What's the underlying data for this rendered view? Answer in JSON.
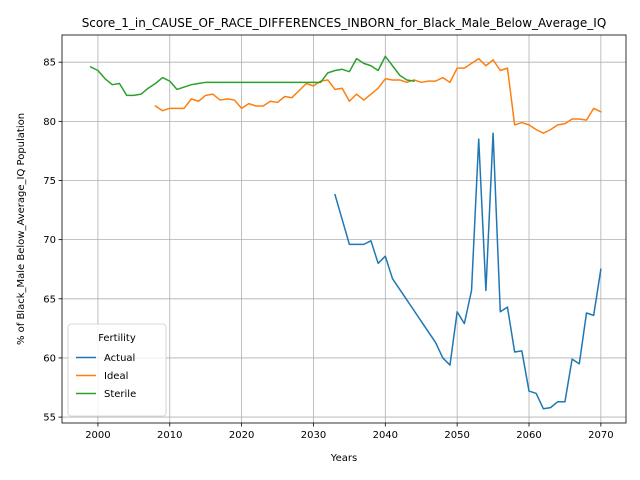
{
  "chart_data": {
    "type": "line",
    "title": "Score_1_in_CAUSE_OF_RACE_DIFFERENCES_INBORN_for_Black_Male_Below_Average_IQ",
    "xlabel": "Years",
    "ylabel": "% of Black_Male Below_Average_IQ Population",
    "xlim": [
      1995,
      2073.5
    ],
    "ylim": [
      54.5,
      87.3
    ],
    "x_ticks": [
      2000,
      2010,
      2020,
      2030,
      2040,
      2050,
      2060,
      2070
    ],
    "y_ticks": [
      55,
      60,
      65,
      70,
      75,
      80,
      85
    ],
    "grid": true,
    "legend": {
      "title": "Fertility",
      "placement": "lower-left"
    },
    "series": [
      {
        "name": "Actual",
        "color": "#1f77b4",
        "points": [
          [
            2033,
            73.8
          ],
          [
            2034,
            71.7
          ],
          [
            2035,
            69.6
          ],
          [
            2036,
            69.6
          ],
          [
            2037,
            69.6
          ],
          [
            2038,
            69.9
          ],
          [
            2039,
            68.0
          ],
          [
            2040,
            68.6
          ],
          [
            2041,
            66.7
          ],
          [
            2042,
            65.8
          ],
          [
            2043,
            64.9
          ],
          [
            2044,
            64.0
          ],
          [
            2045,
            63.1
          ],
          [
            2046,
            62.2
          ],
          [
            2047,
            61.3
          ],
          [
            2048,
            60.0
          ],
          [
            2049,
            59.4
          ],
          [
            2050,
            63.9
          ],
          [
            2051,
            62.9
          ],
          [
            2052,
            65.7
          ],
          [
            2053,
            78.5
          ],
          [
            2054,
            65.7
          ],
          [
            2055,
            79.0
          ],
          [
            2056,
            63.9
          ],
          [
            2057,
            64.3
          ],
          [
            2058,
            60.5
          ],
          [
            2059,
            60.6
          ],
          [
            2060,
            57.2
          ],
          [
            2061,
            57.0
          ],
          [
            2062,
            55.7
          ],
          [
            2063,
            55.8
          ],
          [
            2064,
            56.3
          ],
          [
            2065,
            56.3
          ],
          [
            2066,
            59.9
          ],
          [
            2067,
            59.5
          ],
          [
            2068,
            63.8
          ],
          [
            2069,
            63.6
          ],
          [
            2070,
            67.5
          ]
        ]
      },
      {
        "name": "Ideal",
        "color": "#ff7f0e",
        "points": [
          [
            2008,
            81.3
          ],
          [
            2009,
            80.9
          ],
          [
            2010,
            81.1
          ],
          [
            2011,
            81.1
          ],
          [
            2012,
            81.1
          ],
          [
            2013,
            81.9
          ],
          [
            2014,
            81.7
          ],
          [
            2015,
            82.2
          ],
          [
            2016,
            82.3
          ],
          [
            2017,
            81.8
          ],
          [
            2018,
            81.9
          ],
          [
            2019,
            81.8
          ],
          [
            2020,
            81.1
          ],
          [
            2021,
            81.5
          ],
          [
            2022,
            81.3
          ],
          [
            2023,
            81.3
          ],
          [
            2024,
            81.7
          ],
          [
            2025,
            81.6
          ],
          [
            2026,
            82.1
          ],
          [
            2027,
            82.0
          ],
          [
            2028,
            82.6
          ],
          [
            2029,
            83.2
          ],
          [
            2030,
            83.0
          ],
          [
            2031,
            83.4
          ],
          [
            2032,
            83.5
          ],
          [
            2033,
            82.7
          ],
          [
            2034,
            82.8
          ],
          [
            2035,
            81.7
          ],
          [
            2036,
            82.3
          ],
          [
            2037,
            81.8
          ],
          [
            2038,
            82.3
          ],
          [
            2039,
            82.8
          ],
          [
            2040,
            83.6
          ],
          [
            2041,
            83.5
          ],
          [
            2042,
            83.5
          ],
          [
            2043,
            83.3
          ],
          [
            2044,
            83.5
          ],
          [
            2045,
            83.3
          ],
          [
            2046,
            83.4
          ],
          [
            2047,
            83.4
          ],
          [
            2048,
            83.7
          ],
          [
            2049,
            83.3
          ],
          [
            2050,
            84.5
          ],
          [
            2051,
            84.5
          ],
          [
            2052,
            84.9
          ],
          [
            2053,
            85.3
          ],
          [
            2054,
            84.7
          ],
          [
            2055,
            85.2
          ],
          [
            2056,
            84.3
          ],
          [
            2057,
            84.5
          ],
          [
            2058,
            79.7
          ],
          [
            2059,
            79.9
          ],
          [
            2060,
            79.7
          ],
          [
            2061,
            79.3
          ],
          [
            2062,
            79.0
          ],
          [
            2063,
            79.3
          ],
          [
            2064,
            79.7
          ],
          [
            2065,
            79.8
          ],
          [
            2066,
            80.2
          ],
          [
            2067,
            80.2
          ],
          [
            2068,
            80.1
          ],
          [
            2069,
            81.1
          ],
          [
            2070,
            80.8
          ]
        ]
      },
      {
        "name": "Sterile",
        "color": "#2ca02c",
        "points": [
          [
            1999,
            84.6
          ],
          [
            2000,
            84.3
          ],
          [
            2001,
            83.6
          ],
          [
            2002,
            83.1
          ],
          [
            2003,
            83.2
          ],
          [
            2004,
            82.2
          ],
          [
            2005,
            82.2
          ],
          [
            2006,
            82.3
          ],
          [
            2007,
            82.8
          ],
          [
            2008,
            83.2
          ],
          [
            2009,
            83.7
          ],
          [
            2010,
            83.4
          ],
          [
            2011,
            82.7
          ],
          [
            2012,
            82.9
          ],
          [
            2013,
            83.1
          ],
          [
            2014,
            83.2
          ],
          [
            2015,
            83.3
          ],
          [
            2016,
            83.3
          ],
          [
            2017,
            83.3
          ],
          [
            2018,
            83.3
          ],
          [
            2019,
            83.3
          ],
          [
            2020,
            83.3
          ],
          [
            2021,
            83.3
          ],
          [
            2022,
            83.3
          ],
          [
            2023,
            83.3
          ],
          [
            2024,
            83.3
          ],
          [
            2025,
            83.3
          ],
          [
            2026,
            83.3
          ],
          [
            2027,
            83.3
          ],
          [
            2028,
            83.3
          ],
          [
            2029,
            83.3
          ],
          [
            2030,
            83.3
          ],
          [
            2031,
            83.3
          ],
          [
            2032,
            84.1
          ],
          [
            2033,
            84.3
          ],
          [
            2034,
            84.4
          ],
          [
            2035,
            84.2
          ],
          [
            2036,
            85.3
          ],
          [
            2037,
            84.9
          ],
          [
            2038,
            84.7
          ],
          [
            2039,
            84.3
          ],
          [
            2040,
            85.5
          ],
          [
            2041,
            84.7
          ],
          [
            2042,
            83.9
          ],
          [
            2043,
            83.5
          ],
          [
            2044,
            83.4
          ]
        ]
      }
    ]
  }
}
